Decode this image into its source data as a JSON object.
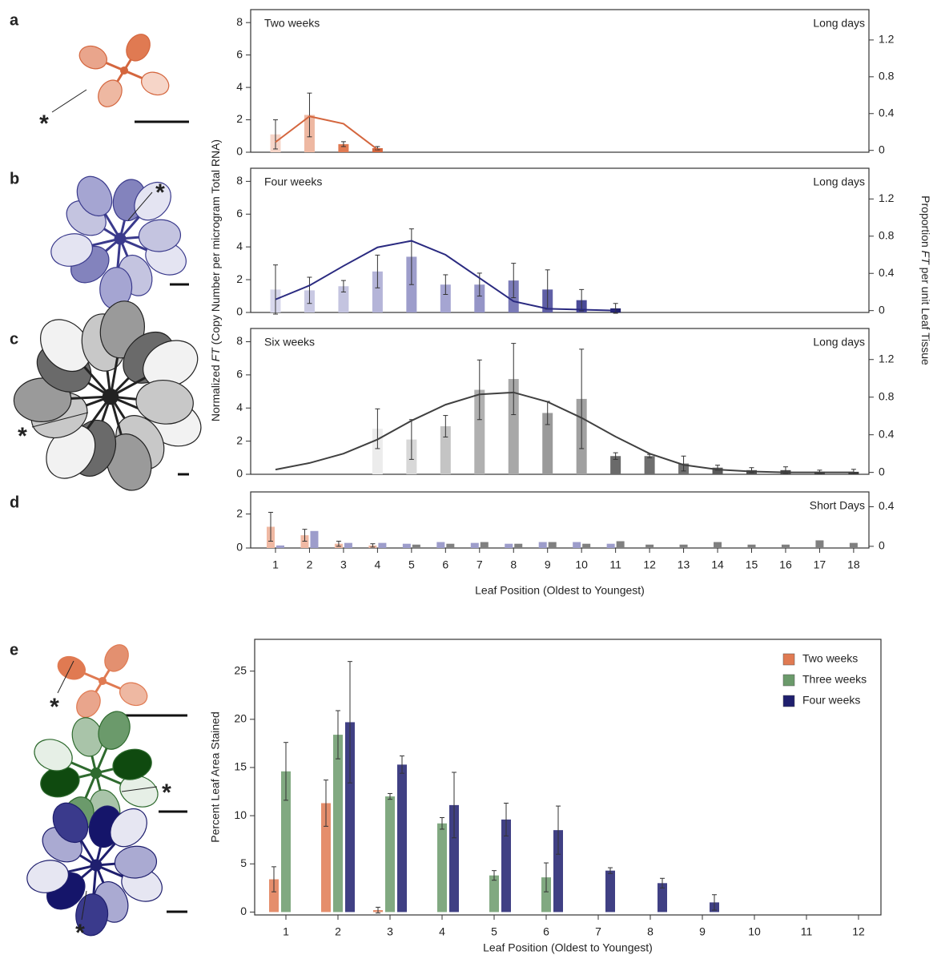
{
  "chart_data": [
    {
      "type": "bar",
      "panel": "a",
      "title": "Two weeks",
      "annotation": "Long days",
      "ylabel": [
        "Normalized ",
        "FT",
        " (Copy Number per microgram Total RNA)"
      ],
      "y2label": [
        "Proportion ",
        "FT",
        " per unit Leaf Tissue"
      ],
      "xlim": [
        0.27,
        18.45
      ],
      "ylim": [
        0,
        8.8
      ],
      "yticks": [
        0,
        2,
        4,
        6,
        8
      ],
      "y2lim": [
        -0.02,
        1.53
      ],
      "y2ticks": [
        0,
        0.4,
        0.8,
        1.2
      ],
      "x": [
        1,
        2,
        3,
        4
      ],
      "values": [
        1.1,
        2.3,
        0.5,
        0.25
      ],
      "errors": [
        0.9,
        1.35,
        0.15,
        0.1
      ],
      "colors": [
        "#f6d5c8",
        "#eeb8a2",
        "#e07a52",
        "#d4663e"
      ],
      "line": {
        "x": [
          1,
          2,
          3,
          4
        ],
        "values": [
          0.09,
          0.37,
          0.29,
          0.01
        ],
        "color": "#d4663e",
        "axis": "y2"
      }
    },
    {
      "type": "bar",
      "panel": "b",
      "title": "Four weeks",
      "annotation": "Long days",
      "xlim": [
        0.27,
        18.45
      ],
      "ylim": [
        0,
        8.8
      ],
      "yticks": [
        0,
        2,
        4,
        6,
        8
      ],
      "y2lim": [
        -0.02,
        1.53
      ],
      "y2ticks": [
        0,
        0.4,
        0.8,
        1.2
      ],
      "x": [
        1,
        2,
        3,
        4,
        5,
        6,
        7,
        8,
        9,
        10,
        11
      ],
      "values": [
        1.4,
        1.35,
        1.6,
        2.5,
        3.4,
        1.7,
        1.7,
        1.95,
        1.4,
        0.75,
        0.25
      ],
      "errors": [
        1.5,
        0.8,
        0.35,
        1.0,
        1.7,
        0.6,
        0.7,
        1.05,
        1.2,
        0.65,
        0.3
      ],
      "colors": [
        "#d8d8ec",
        "#c9c9e3",
        "#c4c4e0",
        "#b4b4d8",
        "#9d9dcb",
        "#a5a5d2",
        "#9595c7",
        "#7b7bb8",
        "#5f5fa6",
        "#4a4a98",
        "#22226f"
      ],
      "line": {
        "x": [
          1,
          2,
          3,
          4,
          5,
          6,
          7,
          8,
          9,
          10,
          11
        ],
        "values": [
          0.12,
          0.27,
          0.48,
          0.68,
          0.75,
          0.6,
          0.35,
          0.1,
          0.02,
          0.01,
          0.0
        ],
        "color": "#2a2a80",
        "axis": "y2"
      }
    },
    {
      "type": "bar",
      "panel": "c",
      "title": "Six weeks",
      "annotation": "Long days",
      "xlim": [
        0.27,
        18.45
      ],
      "ylim": [
        0,
        8.8
      ],
      "yticks": [
        0,
        2,
        4,
        6,
        8
      ],
      "y2lim": [
        -0.02,
        1.53
      ],
      "y2ticks": [
        0,
        0.4,
        0.8,
        1.2
      ],
      "x": [
        4,
        5,
        6,
        7,
        8,
        9,
        10,
        11,
        12,
        13,
        14,
        15,
        16,
        17,
        18
      ],
      "values": [
        2.75,
        2.1,
        2.9,
        5.1,
        5.75,
        3.7,
        4.55,
        1.1,
        1.1,
        0.65,
        0.4,
        0.25,
        0.25,
        0.15,
        0.15
      ],
      "errors": [
        1.2,
        1.2,
        0.65,
        1.8,
        2.15,
        0.7,
        3.0,
        0.2,
        0.1,
        0.45,
        0.15,
        0.15,
        0.2,
        0.1,
        0.15
      ],
      "colors": [
        "#ececec",
        "#d8d8d8",
        "#c4c4c4",
        "#b0b0b0",
        "#a8a8a8",
        "#9a9a9a",
        "#a0a0a0",
        "#6a6a6a",
        "#6e6e6e",
        "#707070",
        "#5a5a5a",
        "#505050",
        "#4a4a4a",
        "#404040",
        "#3a3a3a"
      ],
      "line": {
        "x": [
          1,
          2,
          3,
          4,
          5,
          6,
          7,
          8,
          9,
          10,
          11,
          12,
          13,
          14,
          15,
          16,
          17,
          18
        ],
        "values": [
          0.03,
          0.1,
          0.2,
          0.35,
          0.55,
          0.72,
          0.83,
          0.85,
          0.75,
          0.58,
          0.38,
          0.2,
          0.08,
          0.03,
          0.01,
          0.0,
          0.0,
          0.0
        ],
        "color": "#404040",
        "axis": "y2"
      }
    },
    {
      "type": "grouped-bar",
      "panel": "d",
      "annotation": "Short Days",
      "xlabel": "Leaf Position (Oldest to Youngest)",
      "xlim": [
        0.27,
        18.45
      ],
      "xticks": [
        1,
        2,
        3,
        4,
        5,
        6,
        7,
        8,
        9,
        10,
        11,
        12,
        13,
        14,
        15,
        16,
        17,
        18
      ],
      "ylim": [
        0,
        3.3
      ],
      "yticks": [
        0,
        2
      ],
      "y2lim": [
        -0.017,
        0.55
      ],
      "y2ticks": [
        0,
        0.4
      ],
      "x": [
        1,
        2,
        3,
        4,
        5,
        6,
        7,
        8,
        9,
        10,
        11,
        12,
        13,
        14,
        15,
        16,
        17,
        18
      ],
      "series": [
        {
          "color": "#f0b9a3",
          "values": [
            1.25,
            0.75,
            0.25,
            0.15,
            null,
            null,
            null,
            null,
            null,
            null,
            null,
            null,
            null,
            null,
            null,
            null,
            null,
            null
          ],
          "errors": [
            0.85,
            0.35,
            0.15,
            0.1,
            null,
            null,
            null,
            null,
            null,
            null,
            null,
            null,
            null,
            null,
            null,
            null,
            null,
            null
          ]
        },
        {
          "color": "#9d9dcb",
          "values": [
            0.15,
            1.0,
            0.3,
            0.3,
            0.25,
            0.35,
            0.3,
            0.25,
            0.35,
            0.35,
            0.25,
            null,
            null,
            null,
            null,
            null,
            null,
            null
          ]
        },
        {
          "color": "#808080",
          "values": [
            null,
            null,
            null,
            null,
            0.2,
            0.25,
            0.35,
            0.25,
            0.35,
            0.25,
            0.4,
            0.2,
            0.2,
            0.35,
            0.2,
            0.2,
            0.45,
            0.3
          ]
        }
      ]
    },
    {
      "type": "grouped-bar",
      "panel": "e",
      "xlabel": "Leaf Position (Oldest to Youngest)",
      "ylabel": "Percent Leaf Area Stained",
      "categories": [
        "1",
        "2",
        "3",
        "4",
        "5",
        "6",
        "7",
        "8",
        "9",
        "10",
        "11",
        "12"
      ],
      "ylim": [
        -0.3,
        28.3
      ],
      "yticks": [
        0,
        5,
        10,
        15,
        20,
        25
      ],
      "legend": "upper right",
      "series": [
        {
          "name": "Two weeks",
          "color": "#e07a52",
          "values": [
            3.4,
            11.3,
            0.2,
            null,
            null,
            null,
            null,
            null,
            null,
            null,
            null,
            null
          ],
          "errors": [
            1.3,
            2.4,
            0.3,
            null,
            null,
            null,
            null,
            null,
            null,
            null,
            null,
            null
          ]
        },
        {
          "name": "Three weeks",
          "color": "#6b9a6b",
          "values": [
            14.6,
            18.4,
            12.0,
            9.2,
            3.8,
            3.6,
            null,
            null,
            null,
            null,
            null,
            null
          ],
          "errors": [
            3.0,
            2.5,
            0.3,
            0.6,
            0.5,
            1.5,
            null,
            null,
            null,
            null,
            null,
            null
          ]
        },
        {
          "name": "Four weeks",
          "color": "#1f1f6e",
          "values": [
            null,
            19.7,
            15.3,
            11.1,
            9.6,
            8.5,
            4.3,
            3.0,
            1.0,
            null,
            null,
            null
          ],
          "errors": [
            null,
            6.3,
            0.9,
            3.4,
            1.7,
            2.5,
            0.3,
            0.5,
            0.8,
            null,
            null,
            null
          ]
        }
      ]
    }
  ],
  "illustrations": [
    {
      "marker": "*"
    },
    {
      "marker": "*"
    },
    {
      "marker": "*"
    },
    {
      "marker": "*"
    },
    {
      "marker": "*"
    },
    {
      "marker": "*"
    }
  ]
}
